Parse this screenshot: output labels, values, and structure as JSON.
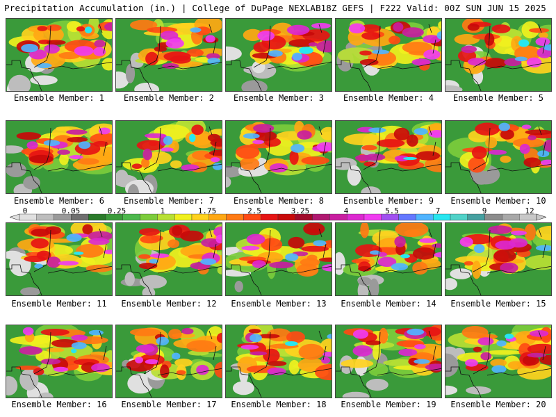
{
  "header": {
    "title": "Precipitation Accumulation (in.) | College of DuPage NEXLAB",
    "run_info": "18Z GEFS | F222 Valid: 00Z SUN JUN 15 2025"
  },
  "legend": {
    "labels": [
      "0",
      "0.05",
      "0.25",
      "1",
      "1.75",
      "2.5",
      "3.25",
      "4",
      "5.5",
      "7",
      "9",
      "12"
    ],
    "colors": [
      "#e0e0e0",
      "#bdbdbd",
      "#9a9a9a",
      "#6f6f6f",
      "#2a7a2a",
      "#3a9a3a",
      "#4cb84c",
      "#7ccc3c",
      "#b8e034",
      "#f0f01e",
      "#ffd21e",
      "#ffa814",
      "#ff7a14",
      "#ff4a14",
      "#e61414",
      "#c80a0a",
      "#a00a2a",
      "#b01870",
      "#c81ea0",
      "#dc28d0",
      "#f03cf0",
      "#a050f0",
      "#6478ff",
      "#50b4ff",
      "#28e6f0",
      "#50d2c8",
      "#46a0a0",
      "#8c8c8c",
      "#a8a8a8",
      "#c8c8c8"
    ]
  },
  "panels": [
    {
      "label": "Ensemble Member: 1"
    },
    {
      "label": "Ensemble Member: 2"
    },
    {
      "label": "Ensemble Member: 3"
    },
    {
      "label": "Ensemble Member: 4"
    },
    {
      "label": "Ensemble Member: 5"
    },
    {
      "label": "Ensemble Member: 6"
    },
    {
      "label": "Ensemble Member: 7"
    },
    {
      "label": "Ensemble Member: 8"
    },
    {
      "label": "Ensemble Member: 9"
    },
    {
      "label": "Ensemble Member: 10"
    },
    {
      "label": "Ensemble Member: 11"
    },
    {
      "label": "Ensemble Member: 12"
    },
    {
      "label": "Ensemble Member: 13"
    },
    {
      "label": "Ensemble Member: 14"
    },
    {
      "label": "Ensemble Member: 15"
    },
    {
      "label": "Ensemble Member: 16"
    },
    {
      "label": "Ensemble Member: 17"
    },
    {
      "label": "Ensemble Member: 18"
    },
    {
      "label": "Ensemble Member: 19"
    },
    {
      "label": "Ensemble Member: 20"
    }
  ]
}
